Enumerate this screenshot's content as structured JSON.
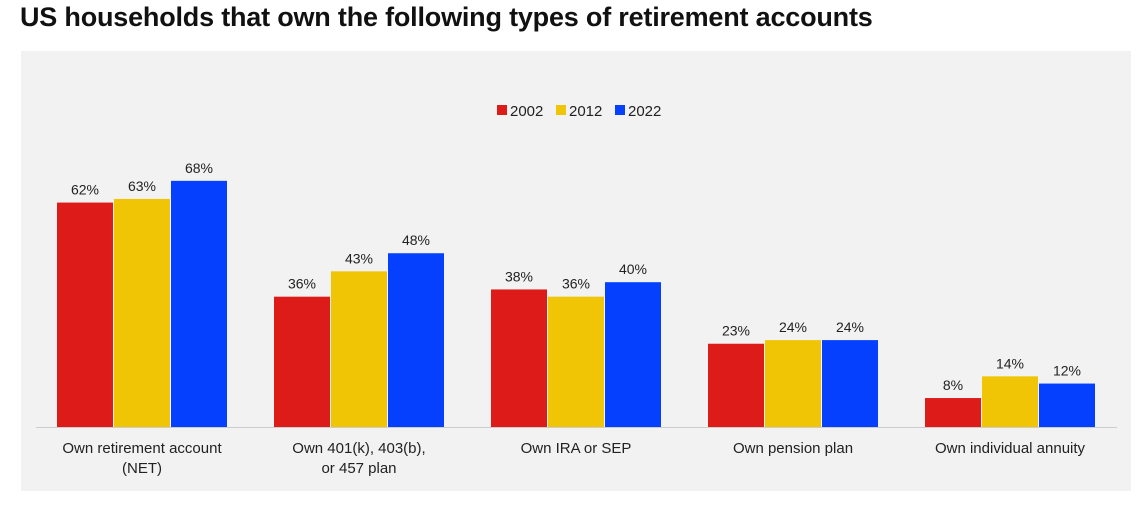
{
  "title": "US households that own the following types of retirement accounts",
  "chart_data": {
    "type": "bar",
    "title": "US households that own the following types of retirement accounts",
    "categories": [
      [
        "Own retirement account",
        "(NET)"
      ],
      [
        "Own 401(k), 403(b),",
        "or 457 plan"
      ],
      [
        "Own IRA or SEP"
      ],
      [
        "Own pension plan"
      ],
      [
        "Own individual annuity"
      ]
    ],
    "series": [
      {
        "name": "2002",
        "color": "#dd1c1a",
        "values": [
          62,
          36,
          38,
          23,
          8
        ],
        "labels": [
          "62%",
          "36%",
          "38%",
          "23%",
          "8%"
        ]
      },
      {
        "name": "2012",
        "color": "#f0c505",
        "values": [
          63,
          43,
          36,
          24,
          14
        ],
        "labels": [
          "63%",
          "43%",
          "36%",
          "24%",
          "14%"
        ]
      },
      {
        "name": "2022",
        "color": "#0540ff",
        "values": [
          68,
          48,
          40,
          24,
          12
        ],
        "labels": [
          "68%",
          "48%",
          "40%",
          "24%",
          "12%"
        ]
      }
    ],
    "ylim": [
      0,
      70
    ],
    "grid": false,
    "legend": "top-center"
  }
}
